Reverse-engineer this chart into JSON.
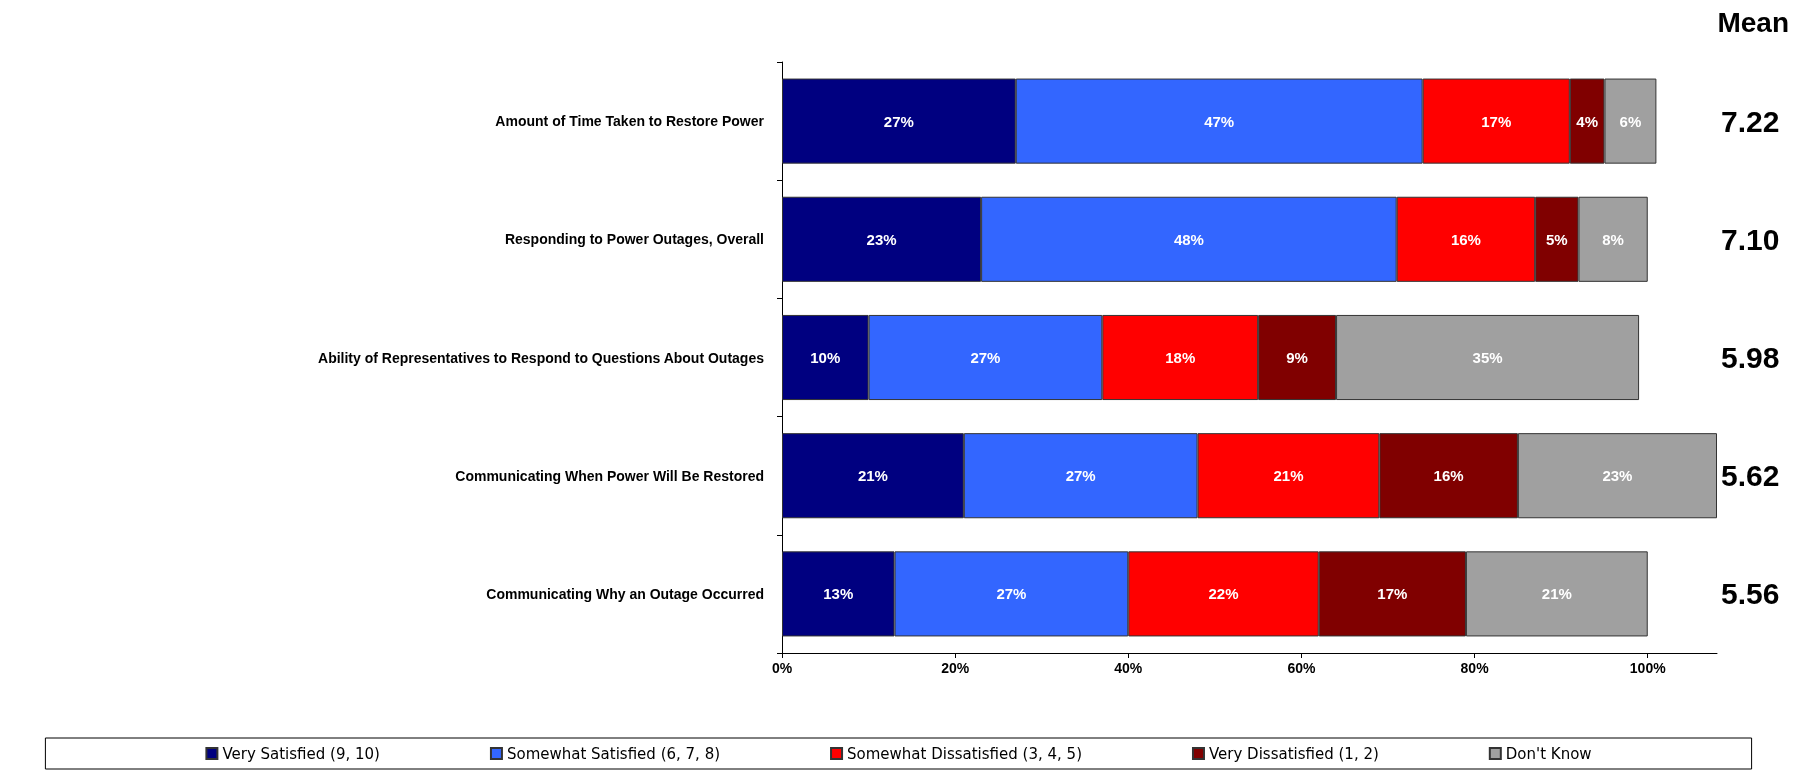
{
  "chart_data": {
    "type": "bar",
    "orientation": "horizontal",
    "stacked": true,
    "categories": [
      "Amount of Time Taken to Restore Power",
      "Responding to Power Outages, Overall",
      "Ability of Representatives to Respond to Questions About Outages",
      "Communicating When Power Will Be Restored",
      "Communicating Why an Outage Occurred"
    ],
    "series": [
      {
        "name": "Very Satisfied (9, 10)",
        "color": "#000080",
        "values": [
          27,
          23,
          10,
          21,
          13
        ],
        "value_labels": [
          "27%",
          "23%",
          "10%",
          "21%",
          "13%"
        ]
      },
      {
        "name": "Somewhat Satisfied (6, 7, 8)",
        "color": "#3366ff",
        "values": [
          47,
          48,
          27,
          27,
          27
        ],
        "value_labels": [
          "47%",
          "48%",
          "27%",
          "27%",
          "27%"
        ]
      },
      {
        "name": "Somewhat Dissatisfied (3, 4, 5)",
        "color": "#ff0000",
        "values": [
          17,
          16,
          18,
          21,
          22
        ],
        "value_labels": [
          "17%",
          "16%",
          "18%",
          "21%",
          "22%"
        ]
      },
      {
        "name": "Very Dissatisfied (1, 2)",
        "color": "#800000",
        "values": [
          4,
          5,
          9,
          16,
          17
        ],
        "value_labels": [
          "4%",
          "5%",
          "9%",
          "16%",
          "17%"
        ]
      },
      {
        "name": "Don't Know",
        "color": "#a0a0a0",
        "values": [
          6,
          8,
          35,
          23,
          21
        ],
        "value_labels": [
          "6%",
          "8%",
          "35%",
          "23%",
          "21%"
        ]
      }
    ],
    "xlim": [
      0,
      108
    ],
    "xticks": [
      {
        "value": 0,
        "label": "0%"
      },
      {
        "value": 20,
        "label": "20%"
      },
      {
        "value": 40,
        "label": "40%"
      },
      {
        "value": 60,
        "label": "60%"
      },
      {
        "value": 80,
        "label": "80%"
      },
      {
        "value": 100,
        "label": "100%"
      }
    ],
    "grid": false,
    "legend": "bottom",
    "annotations": [
      "Mean",
      "7.22",
      "7.10",
      "5.98",
      "5.62",
      "5.56"
    ]
  }
}
